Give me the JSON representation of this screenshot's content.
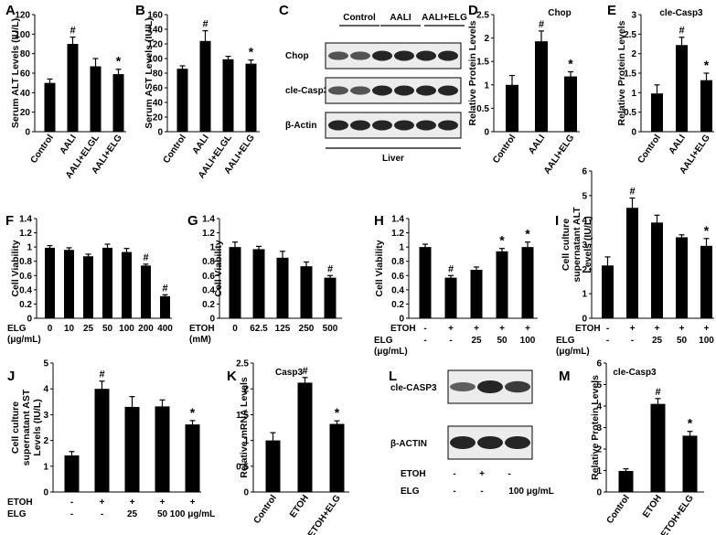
{
  "chart_data": [
    {
      "panel": "A",
      "type": "bar",
      "title": "",
      "ylabel": "Serum ALT Levels (IU/L)",
      "categories": [
        "Control",
        "AALI",
        "AALI+ELGL",
        "AALI+ELG"
      ],
      "values": [
        50,
        90,
        67,
        59
      ],
      "errors": [
        4,
        7,
        8,
        5
      ],
      "marks": [
        "",
        "#",
        "",
        "*"
      ],
      "ylim": [
        0,
        120
      ],
      "ticks": [
        0,
        20,
        40,
        60,
        80,
        100,
        120
      ]
    },
    {
      "panel": "B",
      "type": "bar",
      "title": "",
      "ylabel": "Serum AST Levels (IU/L)",
      "categories": [
        "Control",
        "AALI",
        "AALI+ELGL",
        "AALI+ELG"
      ],
      "values": [
        86,
        124,
        99,
        93
      ],
      "errors": [
        4,
        14,
        4,
        5
      ],
      "marks": [
        "",
        "#",
        "",
        "*"
      ],
      "ylim": [
        0,
        160
      ],
      "ticks": [
        0,
        20,
        40,
        60,
        80,
        100,
        120,
        140,
        160
      ]
    },
    {
      "panel": "D",
      "type": "bar",
      "title": "Chop",
      "ylabel": "Relative Protein Levels",
      "categories": [
        "Control",
        "AALI",
        "AALI+ELG"
      ],
      "values": [
        1.0,
        1.93,
        1.18
      ],
      "errors": [
        0.2,
        0.22,
        0.1
      ],
      "marks": [
        "",
        "#",
        "*"
      ],
      "ylim": [
        0,
        2.5
      ],
      "ticks": [
        0,
        0.5,
        1.0,
        1.5,
        2.0,
        2.5
      ]
    },
    {
      "panel": "E",
      "type": "bar",
      "title": "cle-Casp3",
      "ylabel": "Relative Protein Levels",
      "categories": [
        "Control",
        "AALI",
        "AALI+ELG"
      ],
      "values": [
        0.98,
        2.22,
        1.32
      ],
      "errors": [
        0.22,
        0.2,
        0.18
      ],
      "marks": [
        "",
        "#",
        "*"
      ],
      "ylim": [
        0,
        3
      ],
      "ticks": [
        0,
        0.5,
        1.0,
        1.5,
        2.0,
        2.5,
        3.0
      ]
    },
    {
      "panel": "F",
      "type": "bar",
      "title": "",
      "ylabel": "Cell Viability",
      "categories": [
        "0",
        "10",
        "25",
        "50",
        "100",
        "200",
        "400"
      ],
      "values": [
        0.99,
        0.96,
        0.87,
        0.99,
        0.93,
        0.74,
        0.31
      ],
      "errors": [
        0.03,
        0.03,
        0.03,
        0.05,
        0.05,
        0.02,
        0.02
      ],
      "marks": [
        "",
        "",
        "",
        "",
        "",
        "#",
        "#"
      ],
      "ylim": [
        0,
        1.4
      ],
      "ticks": [
        "0",
        "0.2",
        "0.4",
        "0.6",
        "0.8",
        "1",
        "1.2",
        "1.4"
      ],
      "rowlabels": [
        {
          "label": "ELG",
          "label2": "(μg/mL)",
          "values": [
            "0",
            "10",
            "25",
            "50",
            "100",
            "200",
            "400"
          ]
        }
      ]
    },
    {
      "panel": "G",
      "type": "bar",
      "title": "",
      "ylabel": "Cell Viability",
      "categories": [
        "0",
        "62.5",
        "125",
        "250",
        "500"
      ],
      "values": [
        1.0,
        0.97,
        0.85,
        0.73,
        0.57
      ],
      "errors": [
        0.07,
        0.04,
        0.09,
        0.06,
        0.03
      ],
      "marks": [
        "",
        "",
        "",
        "",
        "#"
      ],
      "ylim": [
        0,
        1.4
      ],
      "ticks": [
        "0",
        "0.2",
        "0.4",
        "0.6",
        "0.8",
        "1",
        "1.2",
        "1.4"
      ],
      "rowlabels": [
        {
          "label": "ETOH",
          "label2": "(mM)",
          "values": [
            "0",
            "62.5",
            "125",
            "250",
            "500"
          ]
        }
      ]
    },
    {
      "panel": "H",
      "type": "bar",
      "title": "",
      "ylabel": "Cell Viability",
      "categories": [
        "1",
        "2",
        "3",
        "4",
        "5"
      ],
      "values": [
        1.0,
        0.57,
        0.68,
        0.94,
        1.0
      ],
      "errors": [
        0.04,
        0.03,
        0.04,
        0.04,
        0.07
      ],
      "marks": [
        "",
        "#",
        "",
        "*",
        "*"
      ],
      "ylim": [
        0,
        1.4
      ],
      "ticks": [
        "0",
        "0.2",
        "0.4",
        "0.6",
        "0.8",
        "1",
        "1.2",
        "1.4"
      ],
      "rowlabels": [
        {
          "label": "ETOH",
          "values": [
            "-",
            "+",
            "+",
            "+",
            "+"
          ]
        },
        {
          "label": "ELG",
          "label2": "(μg/mL)",
          "values": [
            "-",
            "-",
            "25",
            "50",
            "100"
          ]
        }
      ]
    },
    {
      "panel": "I",
      "type": "bar",
      "title": "",
      "ylabel": [
        "Cell culture",
        "supernatant ALT",
        "Levels (IU/L)"
      ],
      "categories": [
        "1",
        "2",
        "3",
        "4",
        "5"
      ],
      "values": [
        2.15,
        4.5,
        3.9,
        3.3,
        2.95
      ],
      "errors": [
        0.35,
        0.4,
        0.3,
        0.1,
        0.3
      ],
      "marks": [
        "",
        "#",
        "",
        "",
        "*"
      ],
      "ylim": [
        0,
        6
      ],
      "ticks": [
        "0",
        "1",
        "2",
        "3",
        "4",
        "5",
        "6"
      ],
      "rowlabels": [
        {
          "label": "ETOH",
          "values": [
            "-",
            "+",
            "+",
            "+",
            "+"
          ]
        },
        {
          "label": "ELG",
          "label2": "(μg/mL)",
          "values": [
            "-",
            "-",
            "25",
            "50",
            "100"
          ]
        }
      ]
    },
    {
      "panel": "J",
      "type": "bar",
      "title": "",
      "ylabel": [
        "Cell culture",
        "supernatant AST",
        "Levels (IU/L)"
      ],
      "categories": [
        "1",
        "2",
        "3",
        "4",
        "5"
      ],
      "values": [
        1.42,
        4.0,
        3.3,
        3.32,
        2.62
      ],
      "errors": [
        0.15,
        0.3,
        0.4,
        0.25,
        0.15
      ],
      "marks": [
        "",
        "#",
        "",
        "",
        "*"
      ],
      "ylim": [
        0,
        5
      ],
      "ticks": [
        "0",
        "1",
        "2",
        "3",
        "4",
        "5"
      ],
      "rowlabels": [
        {
          "label": "ETOH",
          "values": [
            "-",
            "+",
            "+",
            "+",
            "+"
          ]
        },
        {
          "label": "ELG",
          "values": [
            "-",
            "-",
            "25",
            "50",
            "100 μg/mL"
          ]
        }
      ]
    },
    {
      "panel": "K",
      "type": "bar",
      "title": "Casp3",
      "ylabel": "Relative mRNA Levels",
      "categories": [
        "Control",
        "ETOH",
        "ETOH+ELG"
      ],
      "values": [
        1.0,
        2.12,
        1.32
      ],
      "errors": [
        0.15,
        0.1,
        0.06
      ],
      "marks": [
        "",
        "#",
        "*"
      ],
      "ylim": [
        0,
        2.5
      ],
      "ticks": [
        "0",
        "0.5",
        "1",
        "1.5",
        "2",
        "2.5"
      ]
    },
    {
      "panel": "M",
      "type": "bar",
      "title": "cle-Casp3",
      "ylabel": "Relative Protein Levels",
      "categories": [
        "Control",
        "ETOH",
        "ETOH+ELG"
      ],
      "values": [
        0.98,
        4.1,
        2.62
      ],
      "errors": [
        0.1,
        0.25,
        0.2
      ],
      "marks": [
        "",
        "#",
        "*"
      ],
      "ylim": [
        0,
        6
      ],
      "ticks": [
        "0",
        "1",
        "2",
        "3",
        "4",
        "5",
        "6"
      ]
    }
  ],
  "blot_c": {
    "panel": "C",
    "groups": [
      "Control",
      "AALI",
      "AALI+ELG"
    ],
    "rows": [
      "Chop",
      "cle-Casp3",
      "β-Actin"
    ],
    "footer": "Liver"
  },
  "blot_l": {
    "panel": "L",
    "rows": [
      "cle-CASP3",
      "β-ACTIN"
    ],
    "row_etoh": {
      "label": "ETOH",
      "values": [
        "-",
        "+",
        "-"
      ]
    },
    "row_elg": {
      "label": "ELG",
      "values": [
        "-",
        "-",
        "100 μg/mL"
      ]
    }
  },
  "colors": {
    "bar": "#000000",
    "band": "#1a1a1a",
    "blot_bg": "#ececec"
  }
}
